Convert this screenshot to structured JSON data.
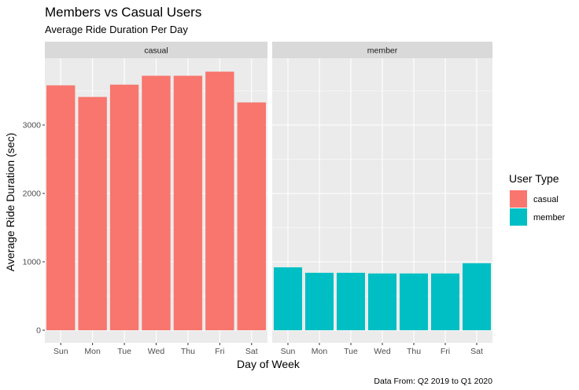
{
  "chart_data": {
    "type": "bar",
    "title": "Members vs Casual Users",
    "subtitle": "Average Ride Duration Per Day",
    "xlabel": "Day of Week",
    "ylabel": "Average Ride Duration (sec)",
    "caption": "Data From: Q2 2019 to Q1 2020",
    "categories": [
      "Sun",
      "Mon",
      "Tue",
      "Wed",
      "Thu",
      "Fri",
      "Sat"
    ],
    "facets": [
      "casual",
      "member"
    ],
    "ylim": [
      0,
      4000
    ],
    "yticks": [
      0,
      1000,
      2000,
      3000
    ],
    "grid": true,
    "legend": {
      "title": "User Type",
      "position": "right",
      "entries": [
        {
          "label": "casual",
          "color": "#F8766D"
        },
        {
          "label": "member",
          "color": "#00BFC4"
        }
      ]
    },
    "series": [
      {
        "name": "casual",
        "values": [
          3580,
          3410,
          3590,
          3720,
          3720,
          3780,
          3330
        ]
      },
      {
        "name": "member",
        "values": [
          920,
          840,
          840,
          830,
          830,
          830,
          980
        ]
      }
    ]
  },
  "colors": {
    "panel_background": "#EBEBEB",
    "grid_line": "#FFFFFF",
    "strip_background": "#D9D9D9"
  }
}
